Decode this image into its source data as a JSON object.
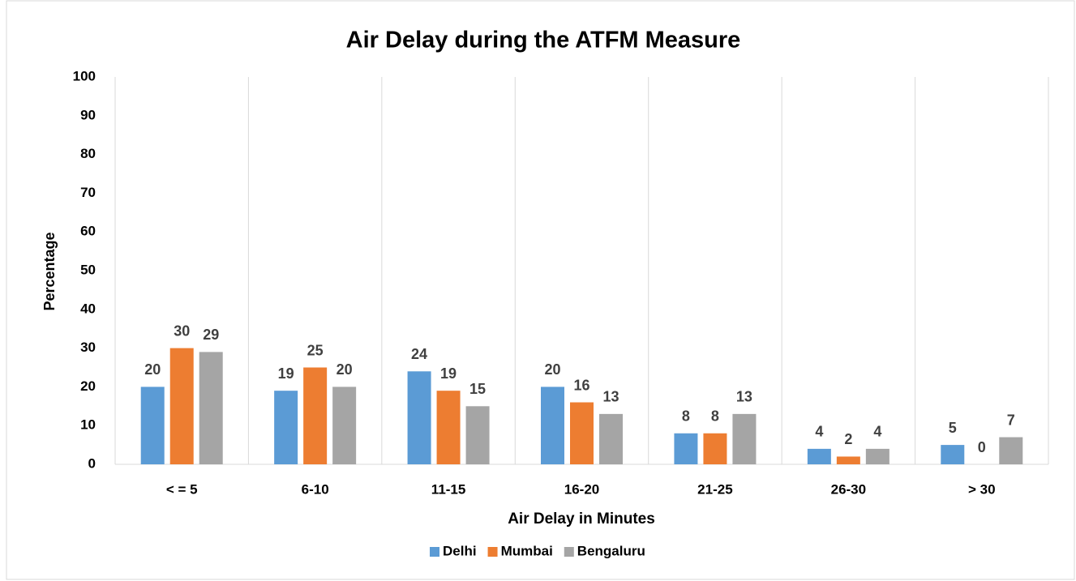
{
  "chart_data": {
    "type": "bar",
    "title": "Air Delay during the ATFM Measure",
    "x_label": "Air Delay in Minutes",
    "y_label": "Percentage",
    "categories": [
      "< = 5",
      "6-10",
      "11-15",
      "16-20",
      "21-25",
      "26-30",
      "> 30"
    ],
    "series": [
      {
        "name": "Delhi",
        "color": "#5b9bd5",
        "values": [
          20,
          19,
          24,
          20,
          8,
          4,
          5
        ]
      },
      {
        "name": "Mumbai",
        "color": "#ed7d31",
        "values": [
          30,
          25,
          19,
          16,
          8,
          2,
          0
        ]
      },
      {
        "name": "Bengaluru",
        "color": "#a5a5a5",
        "values": [
          29,
          20,
          15,
          13,
          13,
          4,
          7
        ]
      }
    ],
    "ylim": [
      0,
      100
    ],
    "yticks": [
      0,
      10,
      20,
      30,
      40,
      50,
      60,
      70,
      80,
      90,
      100
    ],
    "grid": true,
    "legend": "bottom"
  }
}
